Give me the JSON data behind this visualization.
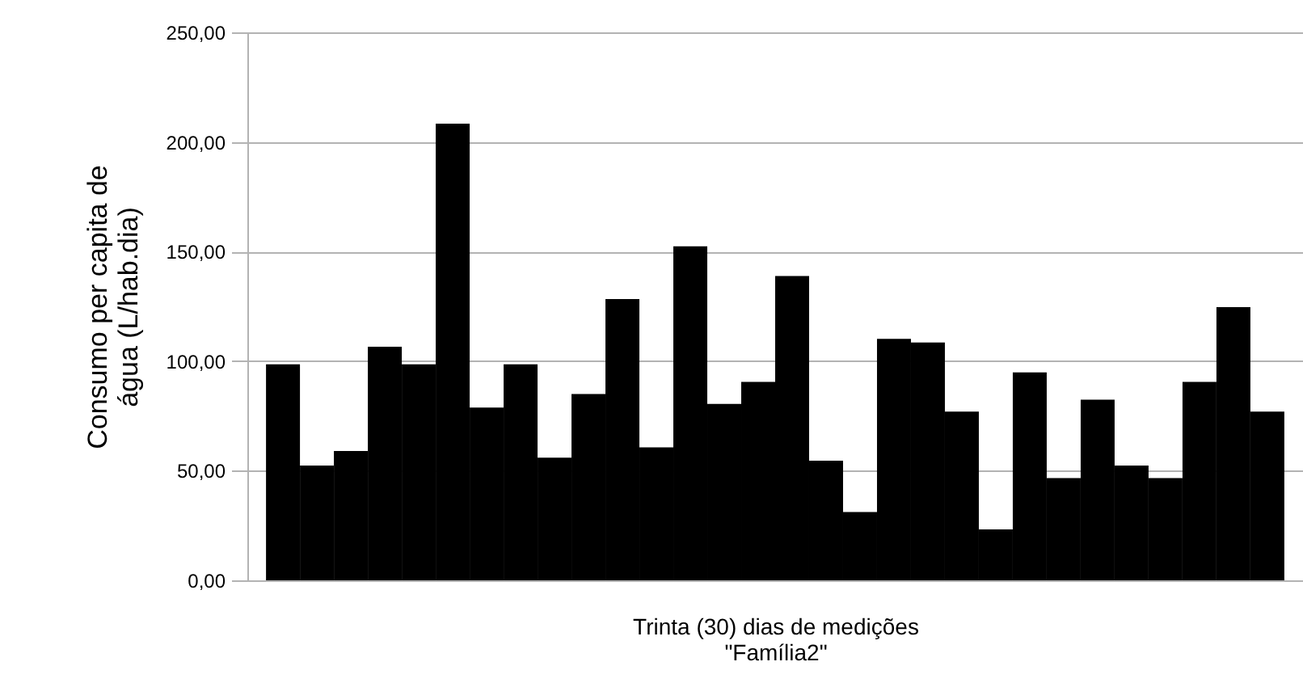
{
  "chart_data": {
    "type": "bar",
    "xlabel": "Trinta (30) dias de medições\n\"Família2\"",
    "ylabel": "Consumo per capita de\nágua (L/hab.dia)",
    "categories": [
      null,
      null,
      null,
      null,
      null,
      null,
      null,
      null,
      null,
      null,
      null,
      null,
      null,
      null,
      null,
      null,
      null,
      null,
      null,
      null,
      null,
      null,
      null,
      null,
      null,
      null,
      null,
      null,
      null,
      null
    ],
    "values": [
      98.5,
      52.4,
      59,
      106.6,
      98.5,
      208.3,
      78.8,
      98.5,
      56,
      85,
      128.3,
      60.7,
      152.4,
      80.5,
      90.5,
      138.8,
      54.6,
      31.2,
      110.2,
      108.5,
      77,
      23.2,
      94.9,
      46.6,
      82.4,
      52.4,
      46.6,
      90.5,
      124.6,
      77
    ],
    "color": "#000000",
    "ylim": [
      0,
      250
    ],
    "yticks": [
      {
        "value": 0,
        "label": "0,00"
      },
      {
        "value": 50,
        "label": "50,00"
      },
      {
        "value": 100,
        "label": "100,00"
      },
      {
        "value": 150,
        "label": "150,00"
      },
      {
        "value": 200,
        "label": "200,00"
      },
      {
        "value": 250,
        "label": "250,00"
      }
    ],
    "grid": "y",
    "tick_labels": "y"
  }
}
